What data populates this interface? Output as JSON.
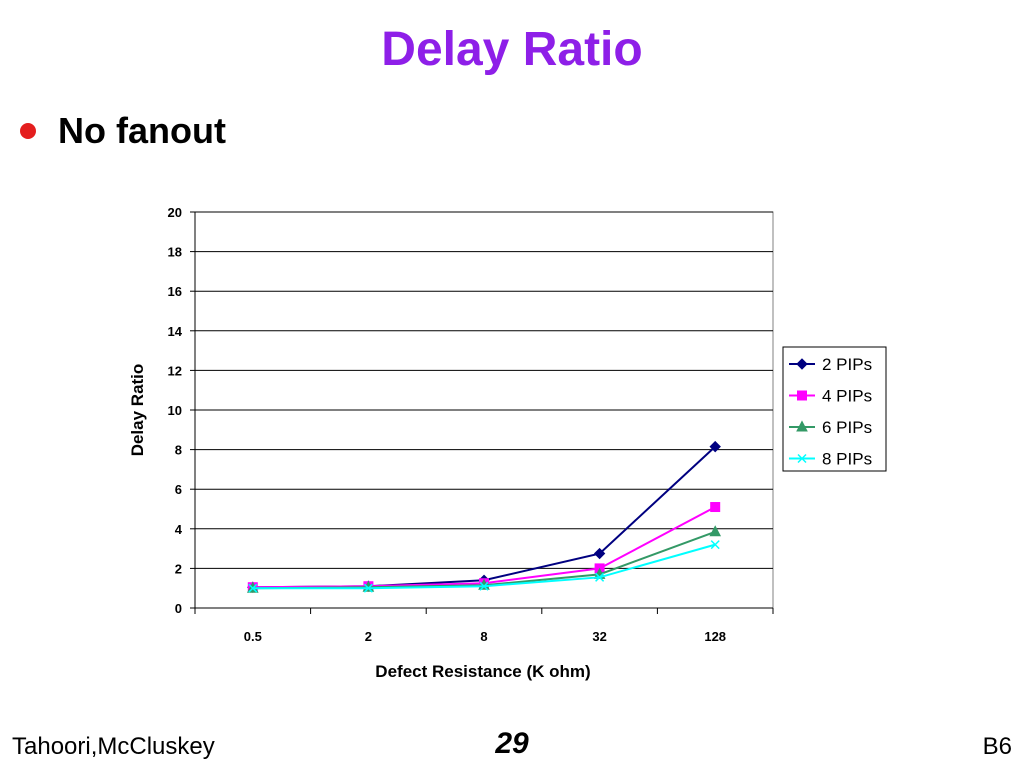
{
  "slide": {
    "title": "Delay Ratio",
    "bullet": "No fanout",
    "footer_left": "Tahoori,McCluskey",
    "page_number": "29",
    "footer_right": "B6",
    "title_color": "#8e1fe8",
    "bullet_color": "#e41e1e"
  },
  "chart_data": {
    "type": "line",
    "title": "",
    "xlabel": "Defect Resistance (K ohm)",
    "ylabel": "Delay Ratio",
    "categories": [
      "0.5",
      "2",
      "8",
      "32",
      "128"
    ],
    "ylim": [
      0,
      20
    ],
    "yticks": [
      "0",
      "2",
      "4",
      "6",
      "8",
      "10",
      "12",
      "14",
      "16",
      "18",
      "20"
    ],
    "grid": "horizontal",
    "legend_position": "right",
    "series": [
      {
        "name": "2 PIPs",
        "color": "#000080",
        "marker": "diamond",
        "values": [
          1.05,
          1.1,
          1.4,
          2.75,
          8.15
        ]
      },
      {
        "name": "4 PIPs",
        "color": "#ff00ff",
        "marker": "square",
        "values": [
          1.05,
          1.1,
          1.25,
          2.0,
          5.1
        ]
      },
      {
        "name": "6 PIPs",
        "color": "#339966",
        "marker": "triangle",
        "values": [
          1.0,
          1.05,
          1.15,
          1.7,
          3.85
        ]
      },
      {
        "name": "8 PIPs",
        "color": "#00ffff",
        "marker": "x",
        "values": [
          1.0,
          1.0,
          1.1,
          1.55,
          3.2
        ]
      }
    ]
  }
}
